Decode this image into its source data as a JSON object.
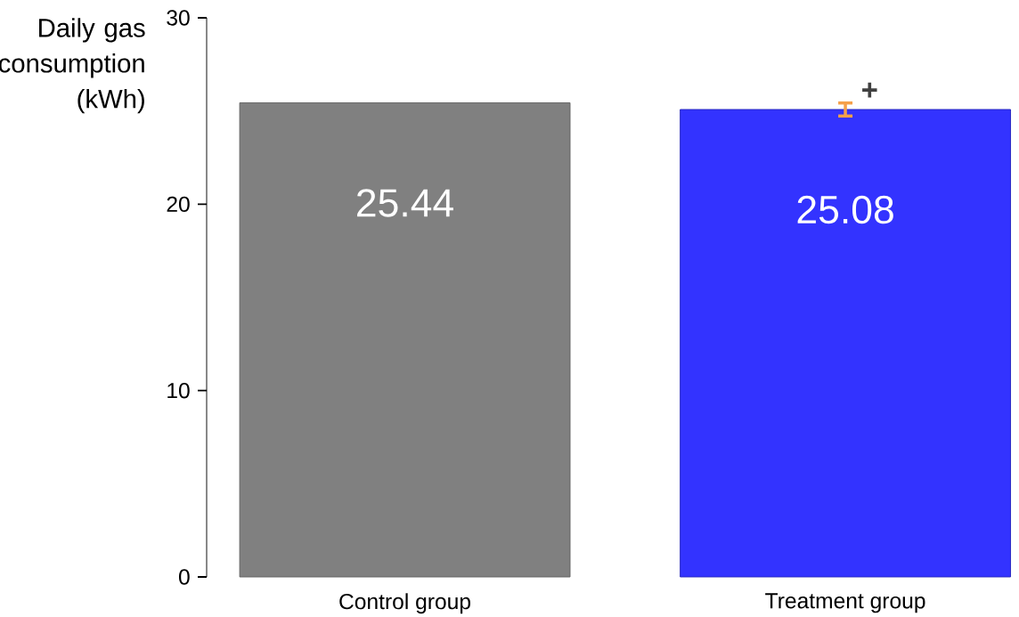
{
  "chart_data": {
    "type": "bar",
    "ylabel": "Daily gas consumption (kWh)",
    "categories": [
      "Control group",
      "Treatment group"
    ],
    "values": [
      25.44,
      25.08
    ],
    "colors": [
      "#808080",
      "#3333ff"
    ],
    "errors": [
      null,
      0.35
    ],
    "data_labels": true,
    "annotations": [
      "+"
    ],
    "ylim": [
      0,
      30
    ],
    "yticks": [
      0,
      10,
      20,
      30
    ],
    "grid": false
  }
}
